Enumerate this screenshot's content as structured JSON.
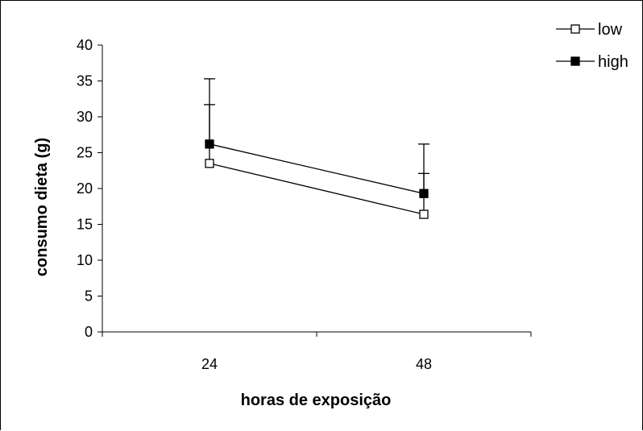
{
  "chart_data": {
    "type": "line",
    "title": "",
    "xlabel": "horas de exposição",
    "ylabel": "consumo dieta (g)",
    "categories": [
      "24",
      "48"
    ],
    "ylim": [
      0,
      40
    ],
    "yticks": [
      "0",
      "5",
      "10",
      "15",
      "20",
      "25",
      "30",
      "35",
      "40"
    ],
    "grid": false,
    "legend_position": "top-right",
    "error_bars": "upper only",
    "series": [
      {
        "name": "low",
        "marker": "open-square",
        "values": [
          23.5,
          16.4
        ],
        "error_upper": [
          31.7,
          22.1
        ]
      },
      {
        "name": "high",
        "marker": "filled-square",
        "values": [
          26.2,
          19.3
        ],
        "error_upper": [
          35.3,
          26.2
        ]
      }
    ]
  }
}
